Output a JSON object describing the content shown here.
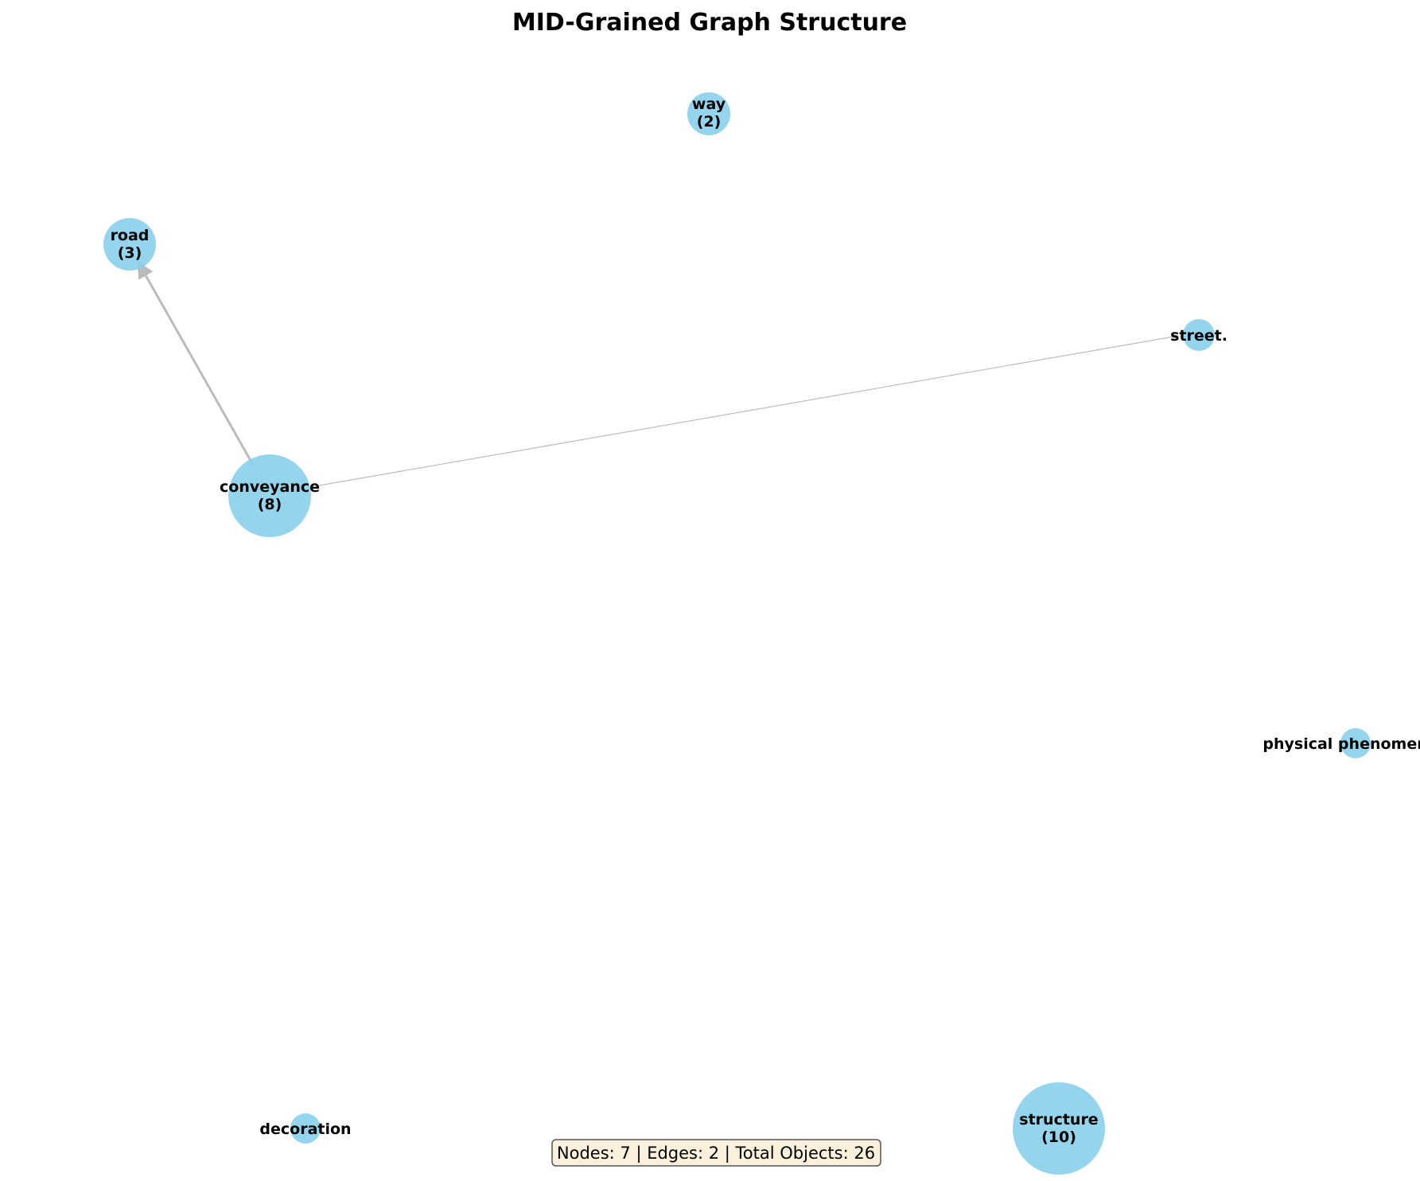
{
  "title": "MID-Grained Graph Structure",
  "colors": {
    "node_fill": "#89CFEB",
    "edge": "#BBBBBB",
    "stats_box_fill": "#FBF0DC",
    "stats_box_stroke": "#555555"
  },
  "nodes": [
    {
      "id": "way",
      "name": "way",
      "count": "(2)"
    },
    {
      "id": "road",
      "name": "road",
      "count": "(3)"
    },
    {
      "id": "street",
      "name": "street.",
      "count": ""
    },
    {
      "id": "conveyance",
      "name": "conveyance",
      "count": "(8)"
    },
    {
      "id": "physical-phenomenon",
      "name": "physical phenomer",
      "count": ""
    },
    {
      "id": "decoration",
      "name": "decoration",
      "count": ""
    },
    {
      "id": "structure",
      "name": "structure",
      "count": "(10)"
    }
  ],
  "edges": [
    {
      "source": "conveyance",
      "target": "road"
    },
    {
      "source": "conveyance",
      "target": "street"
    }
  ],
  "stats": "Nodes: 7 | Edges: 2 | Total Objects: 26"
}
